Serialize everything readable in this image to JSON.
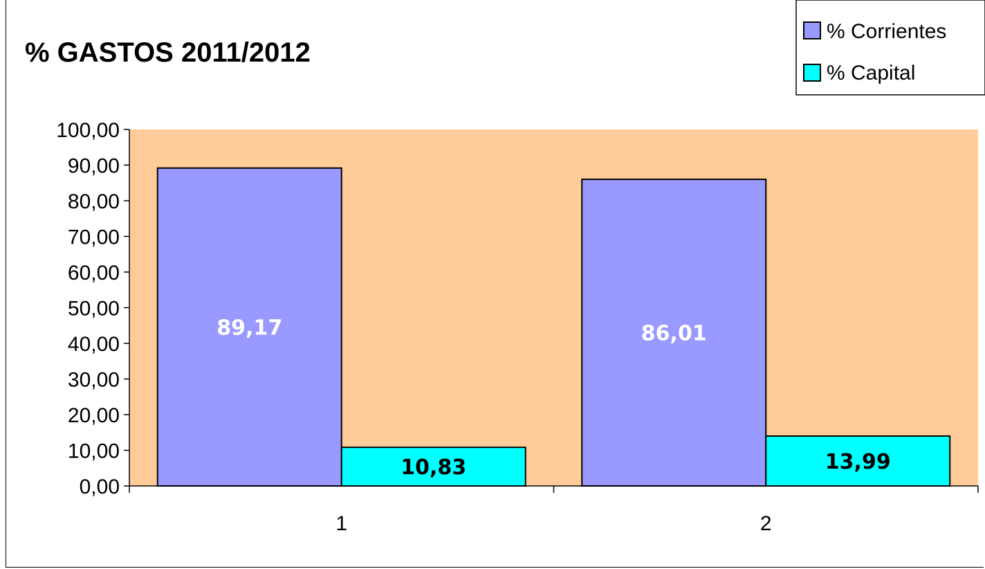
{
  "chart_data": {
    "type": "bar",
    "title": "% GASTOS 2011/2012",
    "xlabel": "",
    "ylabel": "",
    "categories": [
      "1",
      "2"
    ],
    "series": [
      {
        "name": "% Corrientes",
        "values": [
          89.17,
          86.01
        ],
        "labels": [
          "89,17",
          "86,01"
        ],
        "color": "#9999ff",
        "label_color": "#ffffff"
      },
      {
        "name": "% Capital",
        "values": [
          10.83,
          13.99
        ],
        "labels": [
          "10,83",
          "13,99"
        ],
        "color": "#00ffff",
        "label_color": "#000000"
      }
    ],
    "ylim": [
      0,
      100
    ],
    "yticks": [
      0,
      10,
      20,
      30,
      40,
      50,
      60,
      70,
      80,
      90,
      100
    ],
    "ytick_labels": [
      "0,00",
      "10,00",
      "20,00",
      "30,00",
      "40,00",
      "50,00",
      "60,00",
      "70,00",
      "80,00",
      "90,00",
      "100,00"
    ],
    "plot_background": "#ffcc99",
    "grid": false,
    "legend_position": "top-right"
  }
}
